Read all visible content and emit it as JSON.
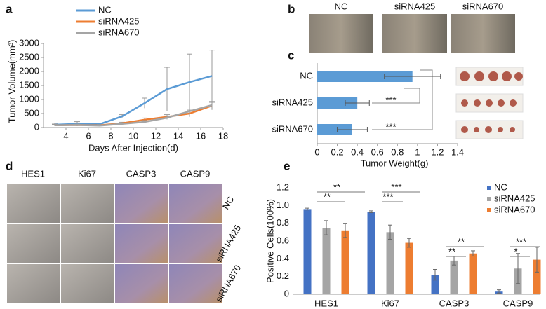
{
  "panel_labels": [
    "a",
    "b",
    "c",
    "d",
    "e"
  ],
  "photo_b": {
    "labels": [
      "NC",
      "siRNA425",
      "siRNA670"
    ]
  },
  "photo_d": {
    "columns": [
      "HES1",
      "Ki67",
      "CASP3",
      "CASP9"
    ],
    "rows": [
      "NC",
      "siRNA425",
      "siRNA670"
    ]
  },
  "chart_data": [
    {
      "type": "line",
      "xlabel": "Days After Injection(d)",
      "ylabel": "Tumor Volume(mm³)",
      "x": [
        3,
        5,
        7,
        9,
        11,
        13,
        15,
        17
      ],
      "xlim": [
        2,
        18
      ],
      "xticks": [
        4,
        6,
        8,
        10,
        12,
        14,
        16,
        18
      ],
      "ylim": [
        0,
        3000
      ],
      "yticks": [
        0,
        500,
        1000,
        1500,
        2000,
        2500,
        3000
      ],
      "legend": "top-left",
      "series": [
        {
          "name": "NC",
          "color": "#5b9bd5",
          "values": [
            100,
            130,
            120,
            400,
            870,
            1370,
            1620,
            1840
          ],
          "errors": [
            50,
            80,
            40,
            60,
            180,
            780,
            1000,
            920
          ]
        },
        {
          "name": "siRNA425",
          "color": "#ed7d31",
          "values": [
            80,
            90,
            80,
            150,
            280,
            380,
            500,
            780
          ],
          "errors": [
            30,
            30,
            30,
            40,
            60,
            80,
            120,
            150
          ]
        },
        {
          "name": "siRNA670",
          "color": "#a5a5a5",
          "values": [
            80,
            90,
            70,
            130,
            200,
            350,
            580,
            800
          ],
          "errors": [
            30,
            30,
            30,
            30,
            50,
            60,
            80,
            100
          ]
        }
      ]
    },
    {
      "type": "hbar",
      "xlabel": "Tumor Weight(g)",
      "categories": [
        "NC",
        "siRNA425",
        "siRNA670"
      ],
      "values": [
        0.95,
        0.4,
        0.35
      ],
      "errors": [
        0.28,
        0.12,
        0.15
      ],
      "color": "#5b9bd5",
      "xlim": [
        0,
        1.4
      ],
      "xticks": [
        0,
        0.2,
        0.4,
        0.6,
        0.8,
        1,
        1.2,
        1.4
      ],
      "annotations": [
        "***",
        "***"
      ]
    },
    {
      "type": "bar",
      "ylabel": "Positive Cells(100%)",
      "categories": [
        "HES1",
        "Ki67",
        "CASP3",
        "CASP9"
      ],
      "ylim": [
        0,
        1.2
      ],
      "yticks": [
        0,
        0.2,
        0.4,
        0.6,
        0.8,
        {
          "value": 1,
          "label": "1.0"
        },
        1.2
      ],
      "legend": "top-right",
      "series": [
        {
          "name": "NC",
          "color": "#4472c4",
          "values": [
            0.96,
            0.93,
            0.22,
            0.03
          ],
          "errors": [
            0.01,
            0.01,
            0.06,
            0.02
          ]
        },
        {
          "name": "siRNA425",
          "color": "#a5a5a5",
          "values": [
            0.75,
            0.7,
            0.38,
            0.29
          ],
          "errors": [
            0.08,
            0.08,
            0.05,
            0.17
          ]
        },
        {
          "name": "siRNA670",
          "color": "#ed7d31",
          "values": [
            0.72,
            0.58,
            0.46,
            0.39
          ],
          "errors": [
            0.08,
            0.05,
            0.03,
            0.14
          ]
        }
      ],
      "annotations": [
        "**",
        "**",
        "***",
        "***",
        "**",
        "**",
        "*",
        "***"
      ]
    }
  ]
}
